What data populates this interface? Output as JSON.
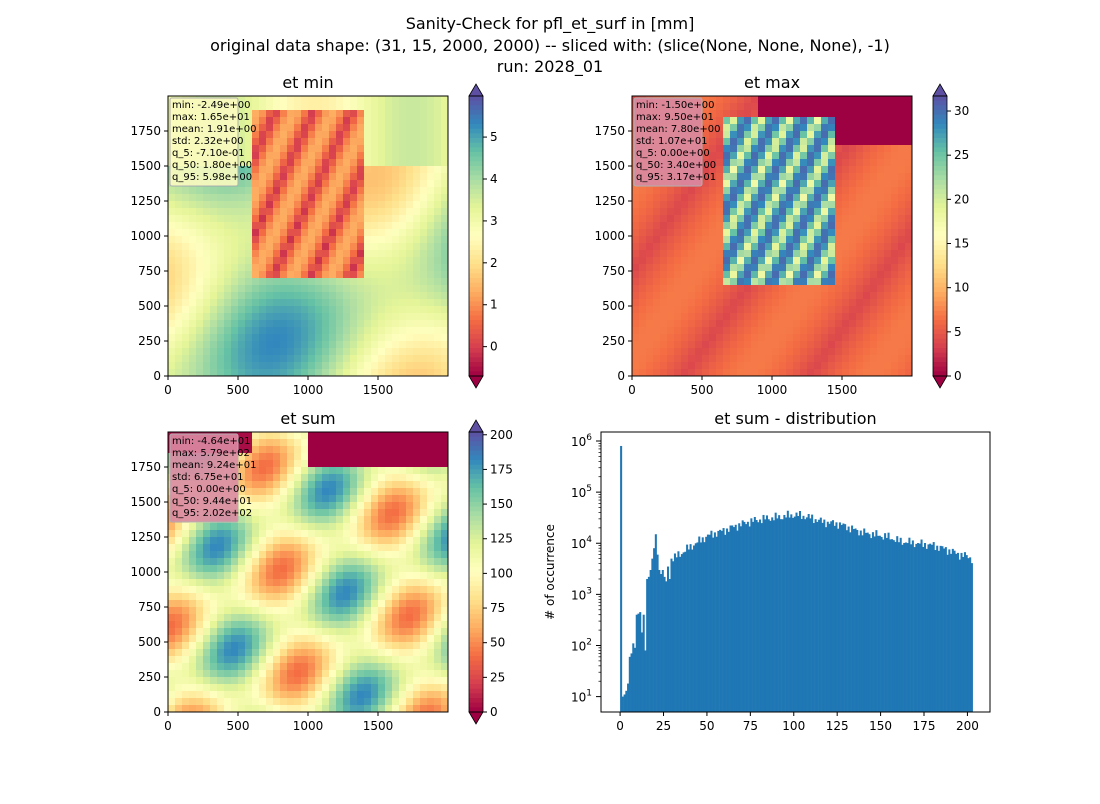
{
  "figure": {
    "title_lines": [
      "Sanity-Check for pfl_et_surf in [mm]",
      "original data shape: (31, 15, 2000, 2000) -- sliced with: (slice(None, None, None), -1)",
      "run: 2028_01"
    ]
  },
  "chart_data": [
    {
      "type": "heatmap",
      "title": "et min",
      "xlim": [
        0,
        2000
      ],
      "ylim": [
        0,
        2000
      ],
      "xticks": [
        0,
        500,
        1000,
        1500
      ],
      "yticks": [
        0,
        250,
        500,
        750,
        1000,
        1250,
        1500,
        1750
      ],
      "colormap": "Spectral",
      "colorbar": {
        "ticks": [
          0,
          1,
          2,
          3,
          4,
          5
        ],
        "vmin": -0.7,
        "vmax": 5.98,
        "extend": "both"
      },
      "stats_box_color": "#fbfbbf",
      "stats": [
        "min: -2.49e+00",
        "max: 1.65e+01",
        "mean: 1.91e+00",
        "std: 2.32e+00",
        "q_5: -7.10e-01",
        "q_50: 1.80e+00",
        "q_95: 5.98e+00"
      ]
    },
    {
      "type": "heatmap",
      "title": "et max",
      "xlim": [
        0,
        2000
      ],
      "ylim": [
        0,
        2000
      ],
      "xticks": [
        0,
        500,
        1000,
        1500
      ],
      "yticks": [
        0,
        250,
        500,
        750,
        1000,
        1250,
        1500,
        1750
      ],
      "colormap": "Spectral",
      "colorbar": {
        "ticks": [
          0,
          5,
          10,
          15,
          20,
          25,
          30
        ],
        "vmin": 0,
        "vmax": 31.7,
        "extend": "both"
      },
      "stats_box_color": "#d98aa2",
      "stats": [
        "min: -1.50e+00",
        "max: 9.50e+01",
        "mean: 7.80e+00",
        "std: 1.07e+01",
        "q_5: 0.00e+00",
        "q_50: 3.40e+00",
        "q_95: 3.17e+01"
      ]
    },
    {
      "type": "heatmap",
      "title": "et sum",
      "xlim": [
        0,
        2000
      ],
      "ylim": [
        0,
        2000
      ],
      "xticks": [
        0,
        500,
        1000,
        1500
      ],
      "yticks": [
        0,
        250,
        500,
        750,
        1000,
        1250,
        1500,
        1750
      ],
      "colormap": "Spectral",
      "colorbar": {
        "ticks": [
          0,
          25,
          50,
          75,
          100,
          125,
          150,
          175,
          200
        ],
        "vmin": 0,
        "vmax": 202,
        "extend": "both"
      },
      "stats_box_color": "#d98aa2",
      "stats": [
        "min: -4.64e+01",
        "max: 5.79e+02",
        "mean: 9.24e+01",
        "std: 6.75e+01",
        "q_5: 0.00e+00",
        "q_50: 9.44e+01",
        "q_95: 2.02e+02"
      ]
    },
    {
      "type": "bar",
      "title": "et sum - distribution",
      "ylabel": "# of occurrence",
      "yscale": "log",
      "xlim": [
        -11,
        213
      ],
      "ylim": [
        5,
        1500000
      ],
      "xticks": [
        0,
        25,
        50,
        75,
        100,
        125,
        150,
        175,
        200
      ],
      "ytick_exponents": [
        1,
        2,
        3,
        4,
        5,
        6
      ],
      "color": "#1f77b4",
      "bin_width": 1,
      "bins": [
        {
          "x": 0,
          "y": 800000
        },
        {
          "x": 1,
          "y": 10
        },
        {
          "x": 2,
          "y": 11
        },
        {
          "x": 3,
          "y": 13
        },
        {
          "x": 4,
          "y": 18
        },
        {
          "x": 5,
          "y": 60
        },
        {
          "x": 6,
          "y": 70
        },
        {
          "x": 7,
          "y": 110
        },
        {
          "x": 8,
          "y": 90
        },
        {
          "x": 9,
          "y": 400
        },
        {
          "x": 10,
          "y": 420
        },
        {
          "x": 11,
          "y": 450
        },
        {
          "x": 12,
          "y": 180
        },
        {
          "x": 13,
          "y": 400
        },
        {
          "x": 14,
          "y": 80
        },
        {
          "x": 15,
          "y": 2000
        },
        {
          "x": 16,
          "y": 2200
        },
        {
          "x": 17,
          "y": 3000
        },
        {
          "x": 18,
          "y": 5000
        },
        {
          "x": 19,
          "y": 8000
        },
        {
          "x": 20,
          "y": 15000
        },
        {
          "x": 21,
          "y": 6000
        },
        {
          "x": 22,
          "y": 3000
        },
        {
          "x": 23,
          "y": 2500
        },
        {
          "x": 24,
          "y": 3000
        },
        {
          "x": 25,
          "y": 2200
        },
        {
          "x": 26,
          "y": 1800
        },
        {
          "x": 27,
          "y": 3500
        },
        {
          "x": 28,
          "y": 2000
        },
        {
          "x": 29,
          "y": 5000
        }
      ],
      "smooth_points": [
        {
          "x": 30,
          "y": 5000
        },
        {
          "x": 35,
          "y": 6500
        },
        {
          "x": 40,
          "y": 8500
        },
        {
          "x": 45,
          "y": 11000
        },
        {
          "x": 50,
          "y": 14000
        },
        {
          "x": 55,
          "y": 16000
        },
        {
          "x": 60,
          "y": 18000
        },
        {
          "x": 65,
          "y": 21000
        },
        {
          "x": 70,
          "y": 24000
        },
        {
          "x": 75,
          "y": 27000
        },
        {
          "x": 80,
          "y": 29000
        },
        {
          "x": 85,
          "y": 31000
        },
        {
          "x": 90,
          "y": 32000
        },
        {
          "x": 95,
          "y": 34000
        },
        {
          "x": 100,
          "y": 36000
        },
        {
          "x": 105,
          "y": 34000
        },
        {
          "x": 110,
          "y": 31000
        },
        {
          "x": 115,
          "y": 27000
        },
        {
          "x": 120,
          "y": 25000
        },
        {
          "x": 125,
          "y": 24000
        },
        {
          "x": 130,
          "y": 21000
        },
        {
          "x": 135,
          "y": 18000
        },
        {
          "x": 140,
          "y": 16000
        },
        {
          "x": 145,
          "y": 15000
        },
        {
          "x": 150,
          "y": 14000
        },
        {
          "x": 155,
          "y": 13000
        },
        {
          "x": 160,
          "y": 11000
        },
        {
          "x": 165,
          "y": 10500
        },
        {
          "x": 170,
          "y": 10000
        },
        {
          "x": 175,
          "y": 9500
        },
        {
          "x": 180,
          "y": 9000
        },
        {
          "x": 185,
          "y": 8000
        },
        {
          "x": 190,
          "y": 7000
        },
        {
          "x": 195,
          "y": 6000
        },
        {
          "x": 200,
          "y": 5500
        },
        {
          "x": 202,
          "y": 5000
        }
      ]
    }
  ]
}
